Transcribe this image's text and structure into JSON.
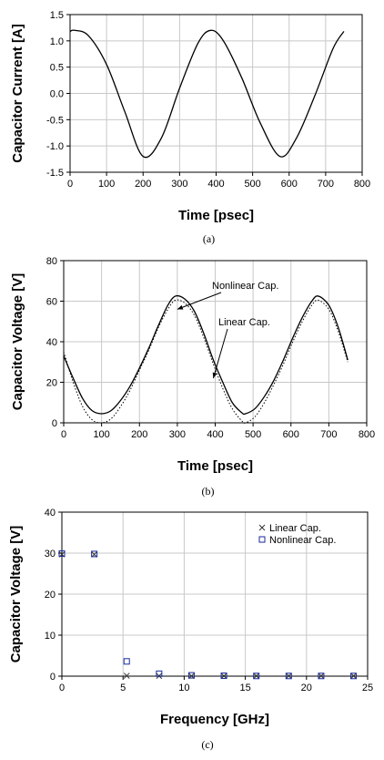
{
  "chart_data": [
    {
      "type": "line",
      "caption": "(a)",
      "xlabel": "Time [psec]",
      "ylabel": "Capacitor Current [A]",
      "xlim": [
        0,
        800
      ],
      "ylim": [
        -1.5,
        1.5
      ],
      "xticks": [
        "0",
        "100",
        "200",
        "300",
        "400",
        "500",
        "600",
        "700",
        "800"
      ],
      "yticks": [
        "1.5",
        "1.0",
        "0.5",
        "0.0",
        "-0.5",
        "-1.0",
        "-1.5"
      ],
      "grid": true,
      "series": [
        {
          "style": "solid",
          "x": [
            0,
            12,
            50,
            100,
            150,
            200,
            250,
            300,
            350,
            385,
            420,
            470,
            520,
            575,
            620,
            670,
            720,
            750
          ],
          "y": [
            1.18,
            1.2,
            1.1,
            0.55,
            -0.35,
            -1.2,
            -0.85,
            0.1,
            0.95,
            1.2,
            1.0,
            0.3,
            -0.55,
            -1.2,
            -0.85,
            -0.05,
            0.85,
            1.18
          ]
        }
      ]
    },
    {
      "type": "line",
      "caption": "(b)",
      "xlabel": "Time [psec]",
      "ylabel": "Capacitor Voltage [V]",
      "xlim": [
        0,
        800
      ],
      "ylim": [
        0,
        80
      ],
      "xticks": [
        "0",
        "100",
        "200",
        "300",
        "400",
        "500",
        "600",
        "700",
        "800"
      ],
      "yticks": [
        "80",
        "60",
        "40",
        "20",
        "0"
      ],
      "grid": true,
      "annotations": [
        {
          "text": "Nonlinear Cap.",
          "at_x": 300,
          "at_y": 56
        },
        {
          "text": "Linear Cap.",
          "at_x": 395,
          "at_y": 22
        }
      ],
      "series": [
        {
          "name": "Nonlinear Cap.",
          "style": "solid",
          "x": [
            0,
            25,
            50,
            75,
            100,
            125,
            150,
            175,
            200,
            225,
            250,
            275,
            295,
            320,
            345,
            370,
            395,
            420,
            445,
            470,
            480,
            505,
            530,
            555,
            580,
            605,
            630,
            655,
            672,
            700,
            725,
            750
          ],
          "y": [
            33,
            22,
            12,
            6,
            4.5,
            6,
            11,
            18,
            27,
            37,
            48,
            58,
            62.5,
            61,
            55,
            44,
            31,
            20,
            10,
            5,
            4.5,
            7,
            13,
            21,
            31,
            42,
            52,
            60,
            62.5,
            58,
            47,
            31
          ]
        },
        {
          "name": "Linear Cap.",
          "style": "dotted",
          "x": [
            0,
            25,
            50,
            75,
            100,
            125,
            150,
            175,
            200,
            225,
            250,
            275,
            295,
            320,
            345,
            370,
            395,
            420,
            445,
            470,
            480,
            505,
            530,
            555,
            580,
            605,
            630,
            655,
            672,
            700,
            725,
            750
          ],
          "y": [
            35,
            20,
            8,
            1.5,
            0,
            2,
            8,
            16,
            26,
            36,
            47,
            56,
            60.5,
            59,
            53,
            42,
            29,
            17,
            7,
            1,
            0,
            3,
            10,
            19,
            29,
            40,
            50,
            58,
            60.5,
            56,
            45,
            30
          ]
        }
      ]
    },
    {
      "type": "scatter",
      "caption": "(c)",
      "xlabel": "Frequency [GHz]",
      "ylabel": "Capacitor Voltage [V]",
      "xlim": [
        0,
        25
      ],
      "ylim": [
        0,
        40
      ],
      "xticks": [
        "0",
        "5",
        "10",
        "15",
        "20",
        "25"
      ],
      "yticks": [
        "40",
        "30",
        "20",
        "10",
        "0"
      ],
      "grid": true,
      "legend_position": "top-right",
      "series": [
        {
          "name": "Linear Cap.",
          "marker": "x",
          "x": [
            0,
            2.65,
            5.3,
            7.95,
            10.6,
            13.25,
            15.9,
            18.55,
            21.2,
            23.85
          ],
          "y": [
            29.7,
            29.7,
            0.1,
            0.05,
            0.05,
            0.05,
            0.05,
            0.05,
            0.05,
            0.05
          ]
        },
        {
          "name": "Nonlinear Cap.",
          "marker": "square",
          "x": [
            0,
            2.65,
            5.3,
            7.95,
            10.6,
            13.25,
            15.9,
            18.55,
            21.2,
            23.85
          ],
          "y": [
            29.9,
            29.8,
            3.6,
            0.6,
            0.2,
            0.1,
            0.05,
            0.05,
            0.05,
            0.05
          ]
        }
      ]
    }
  ]
}
